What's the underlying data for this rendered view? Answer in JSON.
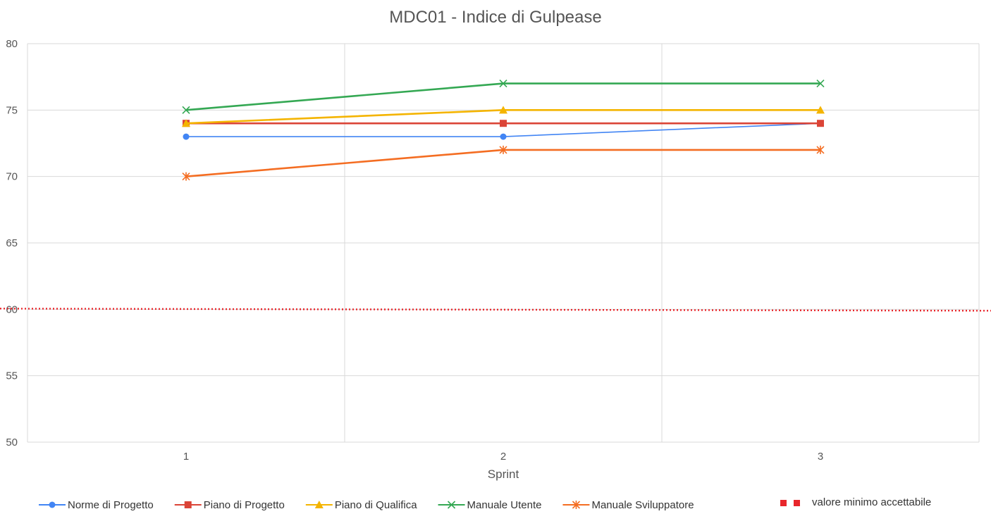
{
  "chart_data": {
    "type": "line",
    "title": "MDC01 - Indice di Gulpease",
    "xlabel": "Sprint",
    "ylabel": "",
    "categories": [
      "1",
      "2",
      "3"
    ],
    "ylim": [
      50,
      80
    ],
    "yticks": [
      50,
      55,
      60,
      65,
      70,
      75,
      80
    ],
    "grid": true,
    "legend_position": "bottom",
    "series": [
      {
        "name": "Norme di Progetto",
        "values": [
          73,
          73,
          74
        ],
        "color": "#4285f4",
        "marker": "circle"
      },
      {
        "name": "Piano di Progetto",
        "values": [
          74,
          74,
          74
        ],
        "color": "#db4437",
        "marker": "square"
      },
      {
        "name": "Piano di Qualifica",
        "values": [
          74,
          75,
          75
        ],
        "color": "#f4b400",
        "marker": "triangle"
      },
      {
        "name": "Manuale Utente",
        "values": [
          75,
          77,
          77
        ],
        "color": "#34a853",
        "marker": "x"
      },
      {
        "name": "Manuale Sviluppatore",
        "values": [
          70,
          72,
          72
        ],
        "color": "#f46d22",
        "marker": "star"
      }
    ],
    "threshold": {
      "name": "valore minimo accettabile",
      "value": 60,
      "color": "#e8262b",
      "style": "dotted"
    }
  }
}
